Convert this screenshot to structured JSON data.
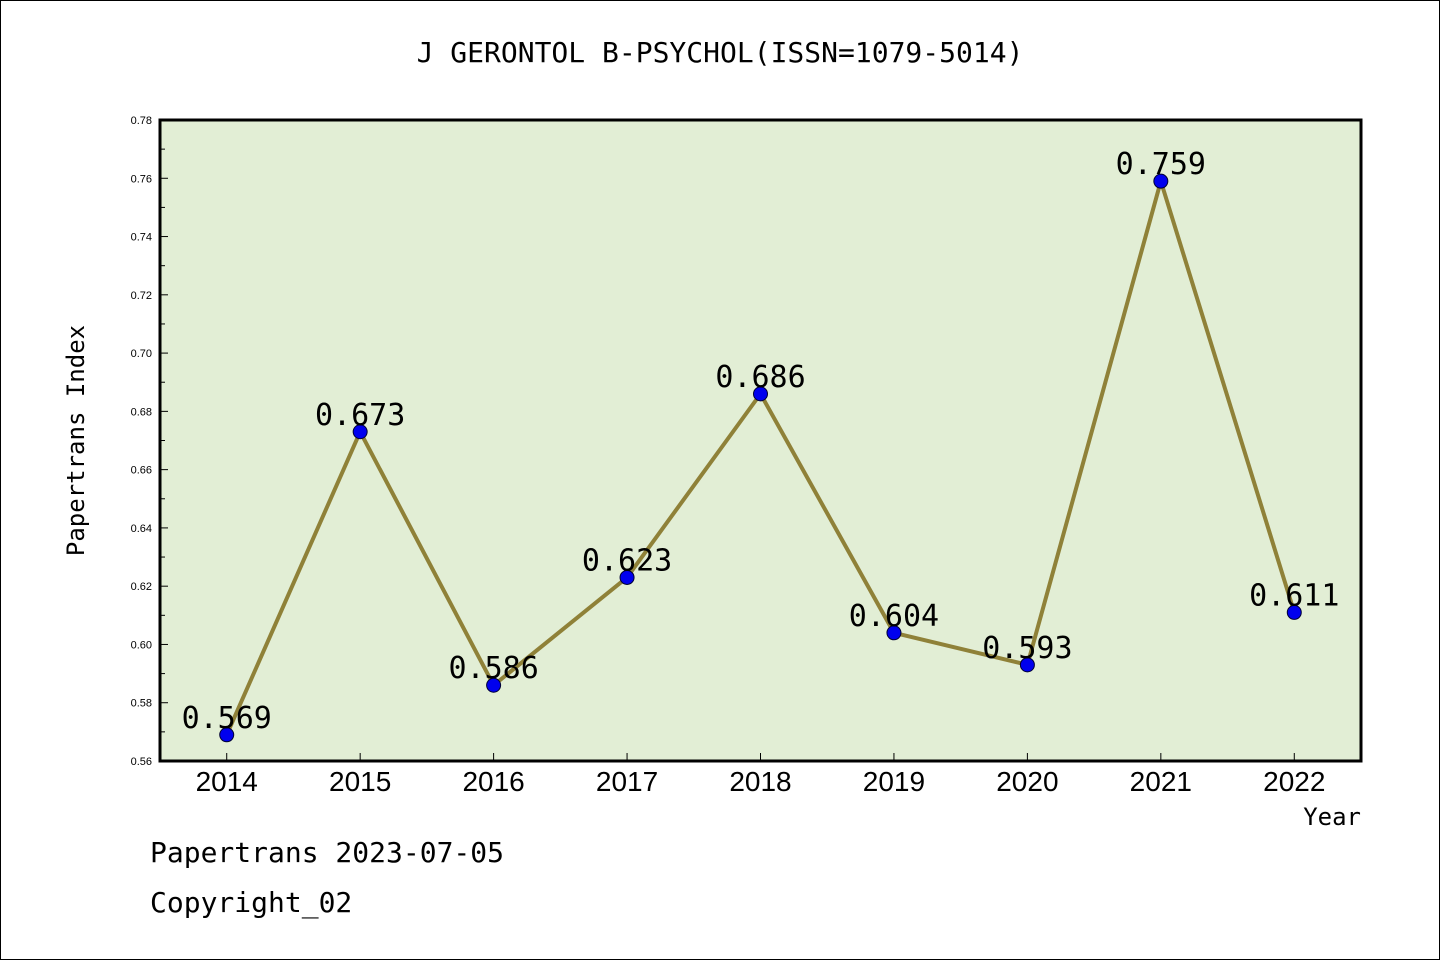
{
  "chart_data": {
    "type": "line",
    "title": "J GERONTOL B-PSYCHOL(ISSN=1079-5014)",
    "xlabel": "Year",
    "ylabel": "Papertrans Index",
    "categories": [
      "2014",
      "2015",
      "2016",
      "2017",
      "2018",
      "2019",
      "2020",
      "2021",
      "2022"
    ],
    "series": [
      {
        "values": [
          0.569,
          0.673,
          0.586,
          0.623,
          0.686,
          0.604,
          0.593,
          0.759,
          0.611
        ]
      }
    ],
    "data_labels": [
      "0.569",
      "0.673",
      "0.586",
      "0.623",
      "0.686",
      "0.604",
      "0.593",
      "0.759",
      "0.611"
    ],
    "ylim": [
      0.56,
      0.78
    ],
    "yticks": [
      "0.56",
      "0.58",
      "0.60",
      "0.62",
      "0.64",
      "0.66",
      "0.68",
      "0.70",
      "0.72",
      "0.74",
      "0.76",
      "0.78"
    ],
    "grid": false,
    "colors": {
      "plot_bg": "#e2eed5",
      "line": "#8f8138",
      "marker": "#0000ee"
    }
  },
  "footer": {
    "line1": "Papertrans 2023-07-05",
    "line2": "Copyright_02"
  }
}
